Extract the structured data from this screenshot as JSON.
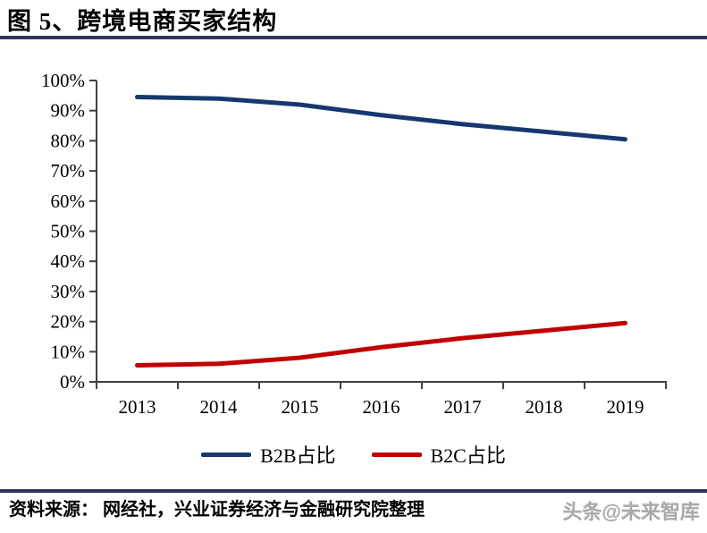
{
  "header": {
    "title": "图 5、跨境电商买家结构"
  },
  "chart_data": {
    "type": "line",
    "title": "跨境电商买家结构",
    "categories": [
      "2013",
      "2014",
      "2015",
      "2016",
      "2017",
      "2018",
      "2019"
    ],
    "series": [
      {
        "name": "B2B占比",
        "color": "#17386E",
        "values": [
          94.5,
          94.0,
          92.0,
          88.5,
          85.5,
          83.0,
          80.5
        ]
      },
      {
        "name": "B2C占比",
        "color": "#C00000",
        "values": [
          5.5,
          6.0,
          8.0,
          11.5,
          14.5,
          17.0,
          19.5
        ]
      }
    ],
    "ylim": [
      0,
      100
    ],
    "ytick_step": 10,
    "ytick_suffix": "%",
    "grid": false,
    "legend_position": "bottom",
    "line_width": 5
  },
  "footer": {
    "source_label": "资料来源：",
    "source_text": "网经社，兴业证券经济与金融研究院整理",
    "watermark": "头条@未来智库"
  },
  "colors": {
    "rule": "#34345B",
    "axis": "#404040",
    "text": "#000000",
    "watermark": "#A9A9A9",
    "background": "#FFFFFF"
  }
}
